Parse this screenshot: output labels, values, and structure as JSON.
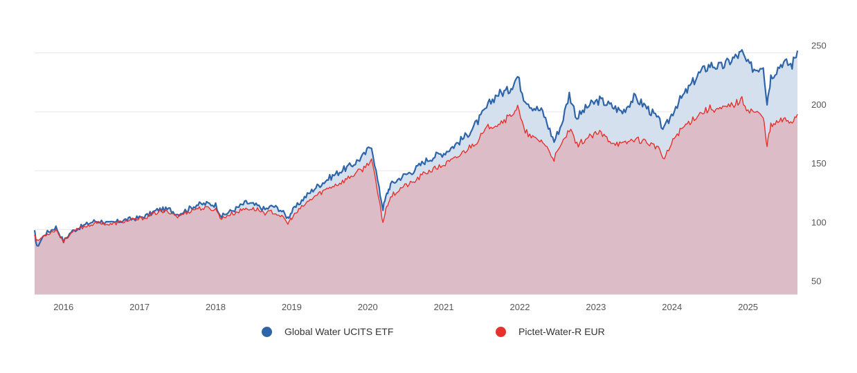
{
  "chart_data": {
    "type": "area",
    "title": "",
    "xlabel": "",
    "ylabel": "",
    "x_ticks": [
      "2016",
      "2017",
      "2018",
      "2019",
      "2020",
      "2021",
      "2022",
      "2023",
      "2024",
      "2025"
    ],
    "y_ticks": [
      50,
      100,
      150,
      200,
      250
    ],
    "ylim": [
      45,
      295
    ],
    "xlim": [
      2015.62,
      2025.65
    ],
    "grid": true,
    "legend_position": "bottom",
    "series": [
      {
        "name": "Global Water UCITS ETF",
        "color": "#2e65a8",
        "fill": "#d5e0ef",
        "x": [
          2015.62,
          2015.65,
          2015.75,
          2015.9,
          2016.0,
          2016.1,
          2016.25,
          2016.4,
          2016.5,
          2016.6,
          2016.8,
          2017.0,
          2017.1,
          2017.25,
          2017.4,
          2017.5,
          2017.6,
          2017.75,
          2017.9,
          2018.0,
          2018.08,
          2018.15,
          2018.25,
          2018.4,
          2018.55,
          2018.65,
          2018.75,
          2018.85,
          2018.95,
          2019.0,
          2019.15,
          2019.3,
          2019.5,
          2019.65,
          2019.8,
          2019.95,
          2020.05,
          2020.15,
          2020.2,
          2020.25,
          2020.3,
          2020.45,
          2020.6,
          2020.75,
          2020.9,
          2021.0,
          2021.15,
          2021.3,
          2021.45,
          2021.6,
          2021.7,
          2021.85,
          2021.97,
          2022.05,
          2022.15,
          2022.3,
          2022.45,
          2022.55,
          2022.65,
          2022.75,
          2022.9,
          2023.05,
          2023.2,
          2023.35,
          2023.5,
          2023.65,
          2023.8,
          2023.9,
          2024.05,
          2024.2,
          2024.35,
          2024.5,
          2024.65,
          2024.8,
          2024.92,
          2025.0,
          2025.1,
          2025.2,
          2025.25,
          2025.3,
          2025.45,
          2025.58,
          2025.65
        ],
        "values": [
          98,
          85,
          96,
          102,
          90,
          98,
          103,
          107,
          107,
          105,
          108,
          110,
          112,
          117,
          117,
          113,
          116,
          121,
          122,
          121,
          111,
          114,
          117,
          123,
          120,
          117,
          120,
          117,
          110,
          115,
          126,
          135,
          144,
          150,
          155,
          163,
          172,
          134,
          118,
          130,
          138,
          145,
          150,
          158,
          163,
          165,
          172,
          180,
          192,
          207,
          215,
          218,
          230,
          213,
          205,
          200,
          175,
          190,
          215,
          195,
          205,
          210,
          205,
          200,
          212,
          205,
          195,
          185,
          205,
          218,
          232,
          240,
          238,
          245,
          250,
          240,
          236,
          240,
          208,
          230,
          242,
          240,
          252
        ]
      },
      {
        "name": "Pictet-Water-R EUR",
        "color": "#e8302c",
        "fill": "#dcbdc7",
        "x": [
          2015.62,
          2015.65,
          2015.75,
          2015.9,
          2016.0,
          2016.1,
          2016.25,
          2016.4,
          2016.5,
          2016.6,
          2016.8,
          2017.0,
          2017.1,
          2017.25,
          2017.4,
          2017.5,
          2017.6,
          2017.75,
          2017.9,
          2018.0,
          2018.08,
          2018.15,
          2018.25,
          2018.4,
          2018.55,
          2018.65,
          2018.75,
          2018.85,
          2018.95,
          2019.0,
          2019.15,
          2019.3,
          2019.5,
          2019.65,
          2019.8,
          2019.95,
          2020.05,
          2020.15,
          2020.2,
          2020.25,
          2020.3,
          2020.45,
          2020.6,
          2020.75,
          2020.9,
          2021.0,
          2021.15,
          2021.3,
          2021.45,
          2021.6,
          2021.7,
          2021.85,
          2021.97,
          2022.05,
          2022.15,
          2022.3,
          2022.45,
          2022.55,
          2022.65,
          2022.75,
          2022.9,
          2023.05,
          2023.2,
          2023.35,
          2023.5,
          2023.65,
          2023.8,
          2023.9,
          2024.05,
          2024.2,
          2024.35,
          2024.5,
          2024.65,
          2024.8,
          2024.92,
          2025.0,
          2025.1,
          2025.2,
          2025.25,
          2025.3,
          2025.45,
          2025.58,
          2025.65
        ],
        "values": [
          96,
          90,
          95,
          100,
          90,
          97,
          102,
          105,
          106,
          104,
          107,
          109,
          111,
          115,
          115,
          111,
          114,
          118,
          118,
          117,
          109,
          112,
          114,
          118,
          117,
          114,
          115,
          112,
          105,
          110,
          120,
          128,
          136,
          140,
          146,
          152,
          160,
          124,
          106,
          120,
          128,
          136,
          140,
          148,
          152,
          155,
          160,
          168,
          176,
          188,
          190,
          195,
          204,
          185,
          178,
          175,
          160,
          172,
          185,
          172,
          178,
          182,
          175,
          172,
          177,
          175,
          170,
          160,
          180,
          190,
          198,
          203,
          202,
          206,
          210,
          202,
          200,
          195,
          172,
          188,
          193,
          192,
          198
        ]
      }
    ]
  },
  "legend": {
    "items": [
      {
        "label": "Global Water UCITS ETF",
        "color": "#2e65a8"
      },
      {
        "label": "Pictet-Water-R EUR",
        "color": "#e8302c"
      }
    ]
  }
}
